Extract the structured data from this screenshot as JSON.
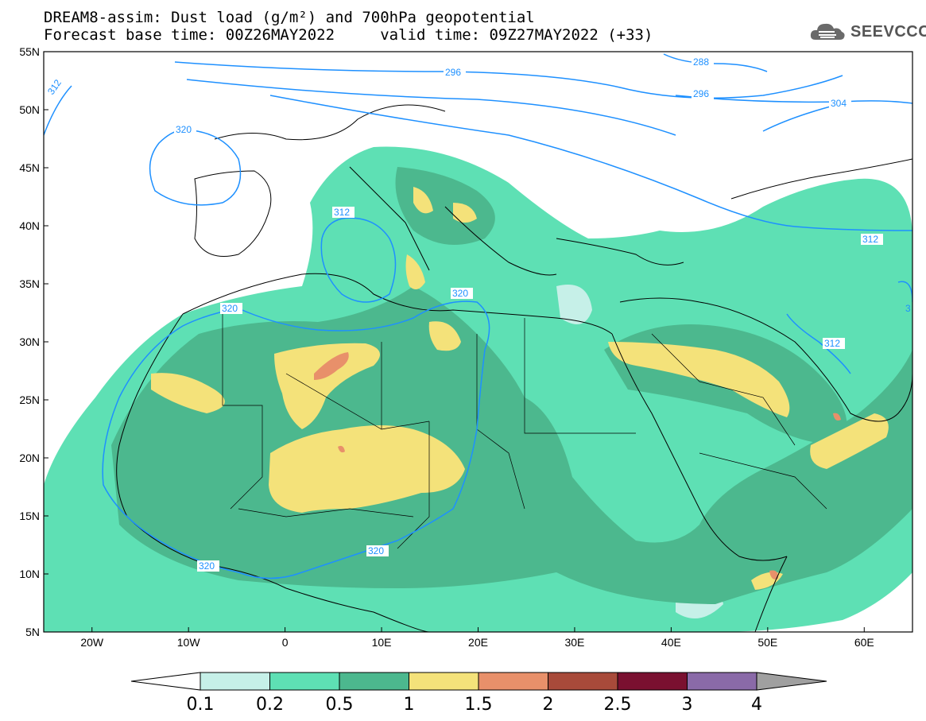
{
  "title": {
    "line1": "DREAM8-assim: Dust load (g/m²) and 700hPa geopotential",
    "line2": "Forecast base time: 00Z26MAY2022     valid time: 09Z27MAY2022 (+33)"
  },
  "logo": {
    "text": "SEEVCCC",
    "icon": "cloud-logo-icon"
  },
  "map": {
    "lat_labels": [
      "55N",
      "50N",
      "45N",
      "40N",
      "35N",
      "30N",
      "25N",
      "20N",
      "15N",
      "10N",
      "5N"
    ],
    "lon_labels": [
      "20W",
      "10W",
      "0",
      "10E",
      "20E",
      "30E",
      "40E",
      "50E",
      "60E"
    ],
    "lat_range": [
      5,
      55
    ],
    "lon_range": [
      -25,
      65
    ],
    "contour_labels": [
      "288",
      "296",
      "296",
      "304",
      "312",
      "312",
      "312",
      "312",
      "320",
      "320",
      "320",
      "320",
      "320",
      "3"
    ]
  },
  "colorbar": {
    "labels": [
      "0.1",
      "0.2",
      "0.5",
      "1",
      "1.5",
      "2",
      "2.5",
      "3",
      "4"
    ],
    "colors": [
      "#c6f0e8",
      "#5ee0b4",
      "#4cb88e",
      "#f4e27a",
      "#e8906a",
      "#a84a3a",
      "#7a1030",
      "#8a6aa8",
      "#a0a0a0"
    ]
  }
}
